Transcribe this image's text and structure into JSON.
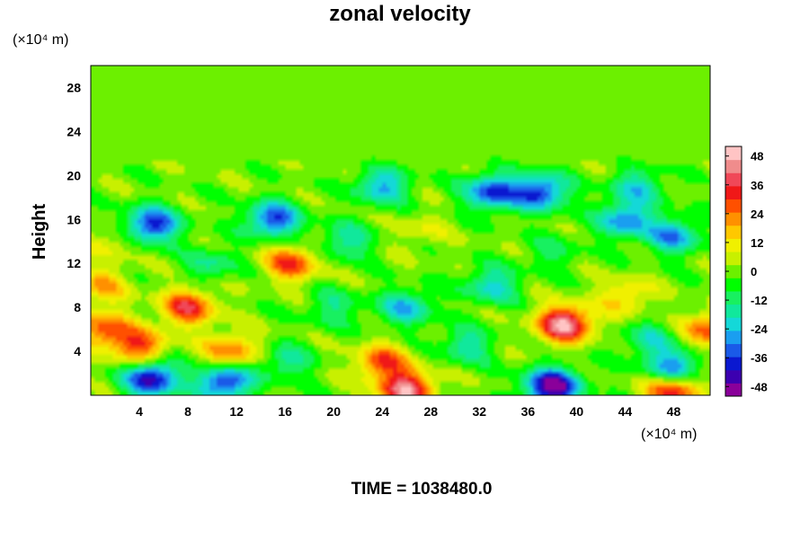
{
  "chart_data": {
    "type": "heatmap",
    "title": "zonal velocity",
    "ylabel": "Height",
    "xlabel": "",
    "x_unit": "(×10⁴ m)",
    "y_unit": "(×10⁴ m)",
    "xlim": [
      0,
      51
    ],
    "ylim": [
      0,
      30
    ],
    "x_ticks": [
      4,
      8,
      12,
      16,
      20,
      24,
      28,
      32,
      36,
      40,
      44,
      48
    ],
    "y_ticks": [
      4,
      8,
      12,
      16,
      20,
      24,
      28
    ],
    "colorbar": {
      "range": [
        -52,
        52
      ],
      "ticks": [
        48,
        36,
        24,
        12,
        0,
        -12,
        -24,
        -36,
        -48
      ],
      "colors": [
        "#8a009a",
        "#3c00b0",
        "#0a18d0",
        "#1a5ae8",
        "#1a9ef0",
        "#14d8d8",
        "#10e89c",
        "#18f060",
        "#00ff00",
        "#6cf000",
        "#c8f000",
        "#f0f000",
        "#ffc800",
        "#ff9000",
        "#ff5000",
        "#f01818",
        "#f04858",
        "#f08c8c",
        "#ffc4c4"
      ]
    },
    "features": [
      {
        "x": 39,
        "y": 6.5,
        "value": 48
      },
      {
        "x": 26,
        "y": 0.5,
        "value": 44
      },
      {
        "x": 38,
        "y": 0.8,
        "value": -52
      },
      {
        "x": 8,
        "y": 8,
        "value": 34
      },
      {
        "x": 4,
        "y": 4.5,
        "value": 30
      },
      {
        "x": 11.5,
        "y": 4,
        "value": 26
      },
      {
        "x": 16.5,
        "y": 12,
        "value": 30
      },
      {
        "x": 1,
        "y": 6,
        "value": 28
      },
      {
        "x": 1,
        "y": 10,
        "value": 18
      },
      {
        "x": 24,
        "y": 3,
        "value": 28
      },
      {
        "x": 48,
        "y": 0.5,
        "value": 36
      },
      {
        "x": 51,
        "y": 6,
        "value": 28
      },
      {
        "x": 5,
        "y": 1.5,
        "value": -44
      },
      {
        "x": 11,
        "y": 1.2,
        "value": -40
      },
      {
        "x": 5,
        "y": 15.5,
        "value": -40
      },
      {
        "x": 15,
        "y": 16,
        "value": -36
      },
      {
        "x": 33,
        "y": 18.5,
        "value": -36
      },
      {
        "x": 37,
        "y": 18.5,
        "value": -38
      },
      {
        "x": 24,
        "y": 19,
        "value": -26
      },
      {
        "x": 44,
        "y": 16,
        "value": -30
      },
      {
        "x": 48,
        "y": 14.5,
        "value": -28
      },
      {
        "x": 48,
        "y": 2.5,
        "value": -32
      },
      {
        "x": 26,
        "y": 8,
        "value": -24
      },
      {
        "x": 33,
        "y": 10,
        "value": -22
      },
      {
        "x": 31,
        "y": 4.5,
        "value": -18
      },
      {
        "x": 20,
        "y": 8,
        "value": -14
      },
      {
        "x": 44,
        "y": 9,
        "value": 16
      },
      {
        "x": 46,
        "y": 5,
        "value": -16
      },
      {
        "x": 16,
        "y": 3,
        "value": -16
      },
      {
        "x": 2,
        "y": 14,
        "value": 10
      },
      {
        "x": 27,
        "y": 15,
        "value": 8
      },
      {
        "x": 38,
        "y": 13,
        "value": -10
      },
      {
        "x": 21,
        "y": 14,
        "value": -18
      },
      {
        "x": 10,
        "y": 12,
        "value": -14
      },
      {
        "x": 45,
        "y": 19,
        "value": -20
      }
    ]
  },
  "footer": {
    "time_label": "TIME = 1038480.0"
  }
}
